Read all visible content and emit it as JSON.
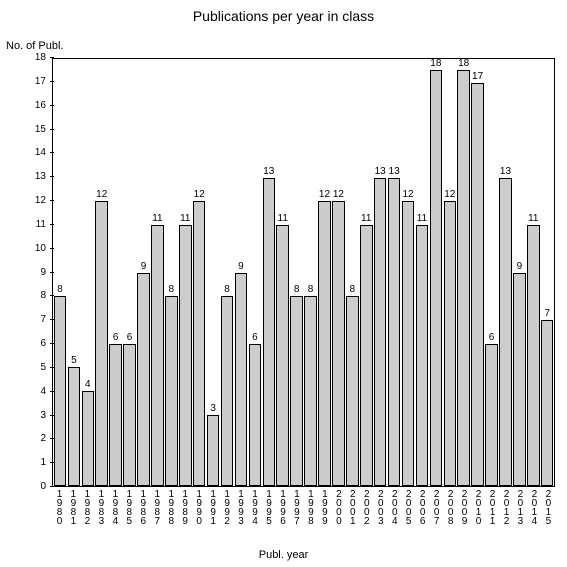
{
  "chart": {
    "type": "bar",
    "title": "Publications per year in class",
    "title_fontsize": 14,
    "y_axis_label": "No. of Publ.",
    "x_axis_label": "Publ. year",
    "label_fontsize": 11,
    "tick_fontsize": 10,
    "background_color": "#ffffff",
    "bar_color": "#cccccc",
    "bar_border_color": "#000000",
    "plot_border_color": "#000000",
    "text_color": "#000000",
    "ylim": [
      0,
      18
    ],
    "ytick_step": 1,
    "bar_width": 0.9,
    "categories": [
      "1980",
      "1981",
      "1982",
      "1983",
      "1984",
      "1985",
      "1986",
      "1987",
      "1988",
      "1989",
      "1990",
      "1991",
      "1992",
      "1993",
      "1994",
      "1995",
      "1996",
      "1997",
      "1998",
      "1999",
      "2000",
      "2001",
      "2002",
      "2003",
      "2004",
      "2005",
      "2006",
      "2007",
      "2008",
      "2009",
      "2010",
      "2011",
      "2012",
      "2013",
      "2014",
      "2015"
    ],
    "values": [
      8,
      5,
      4,
      12,
      6,
      6,
      9,
      11,
      8,
      11,
      12,
      3,
      8,
      9,
      6,
      13,
      11,
      8,
      8,
      12,
      12,
      8,
      11,
      13,
      13,
      12,
      11,
      18,
      12,
      18,
      17,
      6,
      13,
      9,
      11,
      7
    ]
  }
}
